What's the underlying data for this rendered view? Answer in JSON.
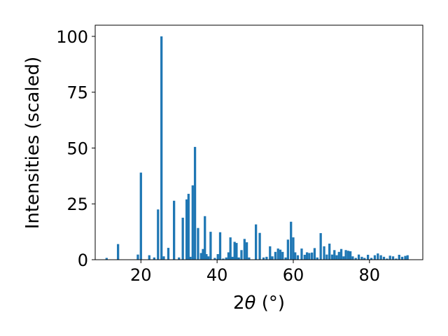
{
  "chart_data": {
    "type": "bar",
    "title": "",
    "xlabel_prefix": "2",
    "xlabel_symbol": "θ",
    "xlabel_unit": " (°)",
    "ylabel": "Intensities (scaled)",
    "xlim": [
      8,
      94
    ],
    "ylim": [
      0,
      105
    ],
    "xticks": [
      20,
      40,
      60,
      80
    ],
    "yticks": [
      0,
      25,
      50,
      75,
      100
    ],
    "bar_color": "#1f77b4",
    "grid": false,
    "legend": "none",
    "x": [
      11.0,
      14.0,
      19.2,
      20.0,
      22.2,
      23.5,
      24.5,
      25.4,
      26.0,
      27.2,
      28.7,
      30.0,
      31.0,
      32.0,
      32.5,
      33.0,
      33.6,
      34.2,
      35.0,
      35.8,
      36.3,
      36.8,
      37.2,
      37.7,
      38.3,
      39.4,
      40.2,
      40.8,
      41.6,
      42.4,
      43.0,
      43.5,
      44.0,
      44.6,
      45.1,
      45.7,
      46.4,
      47.2,
      47.8,
      48.4,
      50.2,
      51.2,
      52.2,
      53.0,
      53.9,
      54.5,
      55.3,
      56.0,
      56.6,
      57.2,
      58.0,
      58.6,
      59.4,
      60.0,
      60.5,
      61.2,
      62.2,
      63.0,
      63.6,
      64.2,
      64.9,
      65.6,
      66.3,
      67.2,
      68.1,
      68.8,
      69.5,
      70.2,
      70.8,
      71.4,
      72.0,
      72.6,
      73.2,
      73.8,
      74.4,
      75.0,
      75.6,
      76.4,
      77.2,
      78.0,
      78.7,
      79.6,
      80.5,
      81.4,
      82.2,
      83.0,
      83.8,
      84.6,
      85.4,
      86.2,
      87.0,
      87.8,
      88.6,
      89.4,
      90.0
    ],
    "values": [
      0.8,
      7.0,
      2.3,
      39.0,
      2.0,
      1.0,
      22.5,
      100.0,
      1.5,
      5.3,
      26.4,
      1.0,
      18.8,
      27.0,
      29.5,
      1.3,
      33.3,
      50.5,
      14.2,
      3.0,
      4.8,
      19.5,
      2.5,
      1.5,
      12.5,
      0.8,
      2.5,
      12.3,
      0.5,
      1.0,
      3.3,
      10.0,
      1.3,
      8.0,
      7.5,
      1.0,
      4.3,
      9.3,
      7.8,
      1.0,
      15.8,
      12.0,
      1.0,
      1.3,
      6.0,
      1.5,
      3.5,
      5.0,
      4.5,
      3.5,
      1.0,
      9.0,
      17.0,
      10.0,
      3.3,
      2.0,
      5.0,
      2.2,
      3.3,
      3.0,
      3.2,
      5.2,
      1.0,
      11.9,
      6.0,
      2.3,
      7.2,
      2.3,
      4.3,
      2.0,
      3.5,
      4.8,
      1.5,
      4.3,
      4.0,
      3.8,
      1.5,
      0.8,
      2.3,
      1.3,
      0.8,
      2.2,
      0.8,
      2.0,
      2.8,
      2.0,
      1.3,
      0.5,
      1.8,
      1.5,
      0.5,
      2.2,
      1.3,
      1.7,
      2.0
    ],
    "bar_width": 0.6
  }
}
